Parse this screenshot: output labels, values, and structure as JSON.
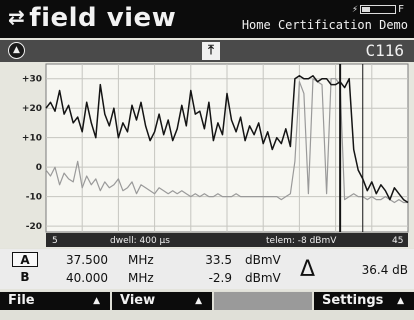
{
  "header": {
    "title": "field view",
    "title_icon": "swap-arrows-icon",
    "status_prefix": "⚡",
    "status_suffix": "F",
    "subtitle": "Home Certification Demo"
  },
  "toolbar": {
    "left_button_icon": "up-triangle-in-circle-icon",
    "marker_icon": "marker-up-arrow-icon",
    "channel": "C116"
  },
  "plot": {
    "info_left": "5",
    "info_dwell": "dwell: 400 µs",
    "info_telem": "telem: -8 dBmV",
    "info_right": "45"
  },
  "chart_data": {
    "type": "line",
    "title": "",
    "xlabel": "",
    "ylabel": "",
    "xlim": [
      5,
      45
    ],
    "ylim": [
      -22,
      35
    ],
    "yticks": [
      "+30",
      "+20",
      "+10",
      "0",
      "-10",
      "-20"
    ],
    "ytick_values": [
      30,
      20,
      10,
      0,
      -10,
      -20
    ],
    "grid": true,
    "colors": {
      "live": "#141414",
      "reference": "#9a9a9a",
      "marker": "#141414"
    },
    "markers": [
      {
        "name": "A",
        "x": 37.5
      },
      {
        "name": "B",
        "x": 40.0
      }
    ],
    "series": [
      {
        "x": [
          5,
          5.5,
          6,
          6.5,
          7,
          7.5,
          8,
          8.5,
          9,
          9.5,
          10,
          10.5,
          11,
          11.5,
          12,
          12.5,
          13,
          13.5,
          14,
          14.5,
          15,
          15.5,
          16,
          16.5,
          17,
          17.5,
          18,
          18.5,
          19,
          19.5,
          20,
          20.5,
          21,
          21.5,
          22,
          22.5,
          23,
          23.5,
          24,
          24.5,
          25,
          25.5,
          26,
          26.5,
          27,
          27.5,
          28,
          28.5,
          29,
          29.5,
          30,
          30.5,
          31,
          31.5,
          32,
          32.5,
          33,
          33.5,
          34,
          34.5,
          35,
          35.5,
          36,
          36.5,
          37,
          37.5,
          38,
          38.5,
          39,
          39.5,
          40,
          40.5,
          41,
          41.5,
          42,
          42.5,
          43,
          43.5,
          44,
          44.5,
          45
        ],
        "values": [
          20,
          22,
          19,
          26,
          18,
          21,
          15,
          17,
          12,
          22,
          15,
          10,
          28,
          18,
          14,
          20,
          10,
          15,
          12,
          21,
          16,
          22,
          14,
          9,
          12,
          18,
          11,
          16,
          9,
          13,
          21,
          14,
          26,
          18,
          19,
          13,
          22,
          9,
          15,
          11,
          25,
          16,
          12,
          17,
          9,
          14,
          11,
          15,
          8,
          12,
          6,
          10,
          8,
          13,
          7,
          30,
          31,
          30,
          30,
          31,
          29,
          30,
          30,
          28,
          28,
          29,
          27,
          30,
          6,
          -1,
          -4,
          -8,
          -5,
          -9,
          -6,
          -8,
          -11,
          -7,
          -9,
          -11,
          -12
        ]
      },
      {
        "x": [
          5,
          5.5,
          6,
          6.5,
          7,
          7.5,
          8,
          8.5,
          9,
          9.5,
          10,
          10.5,
          11,
          11.5,
          12,
          12.5,
          13,
          13.5,
          14,
          14.5,
          15,
          15.5,
          16,
          16.5,
          17,
          17.5,
          18,
          18.5,
          19,
          19.5,
          20,
          20.5,
          21,
          21.5,
          22,
          22.5,
          23,
          23.5,
          24,
          24.5,
          25,
          25.5,
          26,
          26.5,
          27,
          27.5,
          28,
          28.5,
          29,
          29.5,
          30,
          30.5,
          31,
          31.5,
          32,
          32.5,
          33,
          33.5,
          34,
          34.5,
          35,
          35.5,
          36,
          36.5,
          37,
          37.5,
          38,
          38.5,
          39,
          39.5,
          40,
          40.5,
          41,
          41.5,
          42,
          42.5,
          43,
          43.5,
          44,
          44.5,
          45
        ],
        "values": [
          -1,
          -3,
          0,
          -6,
          -2,
          -4,
          -5,
          2,
          -7,
          -3,
          -6,
          -4,
          -8,
          -5,
          -7,
          -6,
          -4,
          -8,
          -7,
          -5,
          -9,
          -6,
          -7,
          -8,
          -9,
          -7,
          -8,
          -9,
          -8,
          -9,
          -8,
          -9,
          -10,
          -9,
          -10,
          -9,
          -10,
          -10,
          -9,
          -10,
          -10,
          -10,
          -9,
          -10,
          -10,
          -10,
          -10,
          -10,
          -10,
          -10,
          -10,
          -10,
          -11,
          -10,
          -9,
          2,
          29,
          25,
          -9,
          30,
          29,
          28,
          -9,
          30,
          30,
          28,
          -11,
          -10,
          -9,
          -10,
          -10,
          -11,
          -10,
          -11,
          -11,
          -10,
          -11,
          -12,
          -11,
          -12,
          -12
        ]
      }
    ]
  },
  "readouts": {
    "rows": [
      {
        "label": "A",
        "freq": "37.500",
        "freq_unit": "MHz",
        "power": "33.5",
        "power_unit": "dBmV"
      },
      {
        "label": "B",
        "freq": "40.000",
        "freq_unit": "MHz",
        "power": "-2.9",
        "power_unit": "dBmV"
      }
    ],
    "delta_symbol": "Δ",
    "delta_value": "36.4 dB"
  },
  "menu": {
    "file": "File",
    "view": "View",
    "settings": "Settings",
    "up_icon": "▲"
  }
}
